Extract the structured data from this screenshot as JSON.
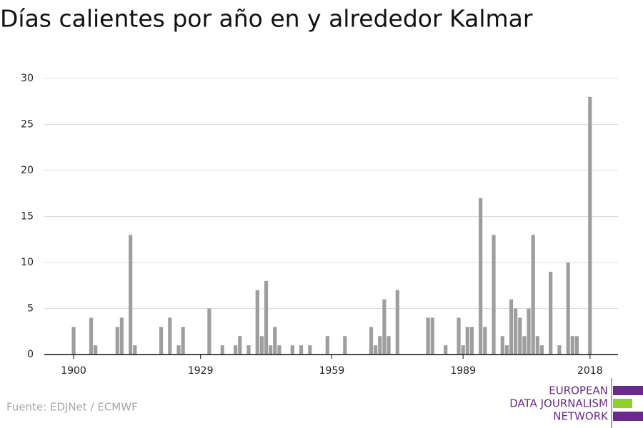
{
  "chart_data": {
    "type": "bar",
    "title": "Días calientes por año en y alrededor Kalmar",
    "x": [
      1900,
      1901,
      1902,
      1903,
      1904,
      1905,
      1906,
      1907,
      1908,
      1909,
      1910,
      1911,
      1912,
      1913,
      1914,
      1915,
      1916,
      1917,
      1918,
      1919,
      1920,
      1921,
      1922,
      1923,
      1924,
      1925,
      1926,
      1927,
      1928,
      1929,
      1930,
      1931,
      1932,
      1933,
      1934,
      1935,
      1936,
      1937,
      1938,
      1939,
      1940,
      1941,
      1942,
      1943,
      1944,
      1945,
      1946,
      1947,
      1948,
      1949,
      1950,
      1951,
      1952,
      1953,
      1954,
      1955,
      1956,
      1957,
      1958,
      1959,
      1960,
      1961,
      1962,
      1963,
      1964,
      1965,
      1966,
      1967,
      1968,
      1969,
      1970,
      1971,
      1972,
      1973,
      1974,
      1975,
      1976,
      1977,
      1978,
      1979,
      1980,
      1981,
      1982,
      1983,
      1984,
      1985,
      1986,
      1987,
      1988,
      1989,
      1990,
      1991,
      1992,
      1993,
      1994,
      1995,
      1996,
      1997,
      1998,
      1999,
      2000,
      2001,
      2002,
      2003,
      2004,
      2005,
      2006,
      2007,
      2008,
      2009,
      2010,
      2011,
      2012,
      2013,
      2014,
      2015,
      2016,
      2017,
      2018
    ],
    "values": [
      3,
      0,
      0,
      0,
      4,
      1,
      0,
      0,
      0,
      0,
      3,
      4,
      0,
      13,
      1,
      0,
      0,
      0,
      0,
      0,
      3,
      0,
      4,
      0,
      1,
      3,
      0,
      0,
      0,
      0,
      0,
      5,
      0,
      0,
      1,
      0,
      0,
      1,
      2,
      0,
      1,
      0,
      7,
      2,
      8,
      1,
      3,
      1,
      0,
      0,
      1,
      0,
      1,
      0,
      1,
      0,
      0,
      0,
      2,
      0,
      0,
      0,
      2,
      0,
      0,
      0,
      0,
      0,
      3,
      1,
      2,
      6,
      2,
      0,
      7,
      0,
      0,
      0,
      0,
      0,
      0,
      4,
      4,
      0,
      0,
      1,
      0,
      0,
      4,
      1,
      3,
      3,
      0,
      17,
      3,
      0,
      13,
      0,
      2,
      1,
      6,
      5,
      4,
      2,
      5,
      13,
      2,
      1,
      0,
      9,
      0,
      1,
      0,
      10,
      2,
      2,
      0,
      0,
      28
    ],
    "color": "#9e9e9e",
    "xlim": [
      1893.3,
      2024.4
    ],
    "xticks": [
      1900,
      1929,
      1959,
      1989,
      2018
    ],
    "ylim": [
      0,
      30
    ],
    "yticks": [
      0,
      5,
      10,
      15,
      20,
      25,
      30
    ],
    "grid": true
  },
  "footer": {
    "source": "Fuente: EDJNet / ECMWF",
    "logo": [
      "EUROPEAN",
      "DATA JOURNALISM",
      "NETWORK"
    ]
  }
}
